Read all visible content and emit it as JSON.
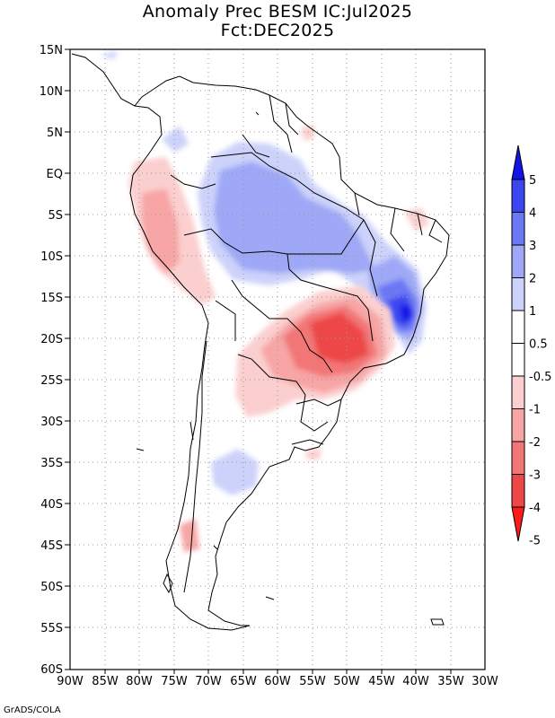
{
  "title": {
    "line1": "Anomaly Prec BESM IC:Jul2025",
    "line2": "Fct:DEC2025"
  },
  "map": {
    "lat_range": [
      -60,
      15
    ],
    "lon_range": [
      -90,
      -30
    ],
    "y_tick_labels": [
      "15N",
      "10N",
      "5N",
      "EQ",
      "5S",
      "10S",
      "15S",
      "20S",
      "25S",
      "30S",
      "35S",
      "40S",
      "45S",
      "50S",
      "55S",
      "60S"
    ],
    "x_tick_labels": [
      "90W",
      "85W",
      "80W",
      "75W",
      "70W",
      "65W",
      "60W",
      "55W",
      "50W",
      "45W",
      "40W",
      "35W",
      "30W"
    ]
  },
  "colorbar": {
    "labels": [
      "5",
      "4",
      "3",
      "2",
      "1",
      "0.5",
      "-0.5",
      "-1",
      "-2",
      "-3",
      "-4",
      "-5"
    ],
    "colors": [
      "#1414e6",
      "#3c46f0",
      "#6a78f4",
      "#9ea8f6",
      "#ccd2fa",
      "#ffffff",
      "#ffffff",
      "#fbcfcf",
      "#f7a5a5",
      "#f27676",
      "#ee4747",
      "#ff1a1a"
    ]
  },
  "credit": "GrADS/COLA"
}
